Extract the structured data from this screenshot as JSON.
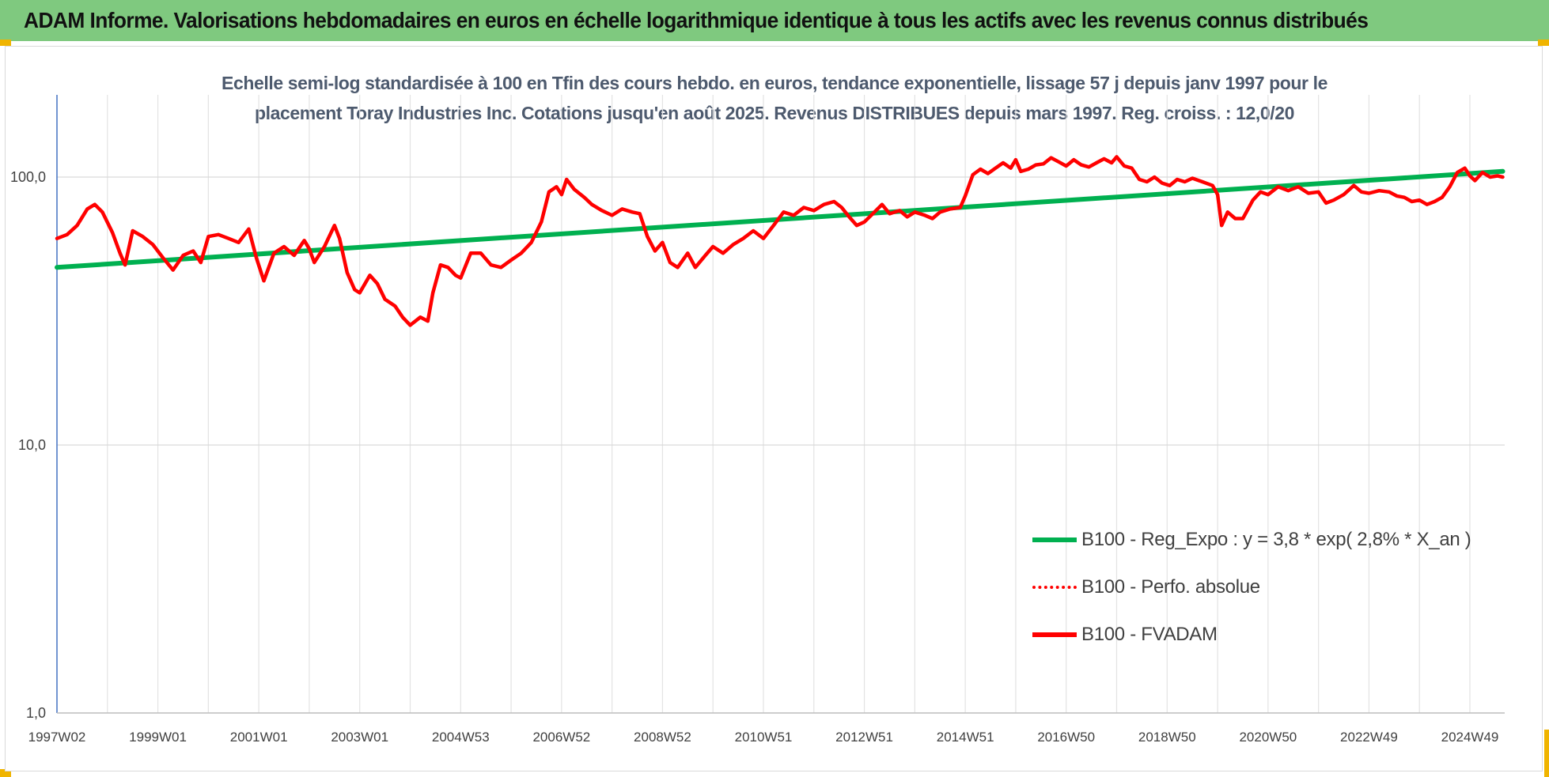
{
  "banner": {
    "title": "ADAM Informe. Valorisations hebdomadaires en euros en échelle logarithmique identique à tous les actifs avec les revenus connus distribués"
  },
  "colors": {
    "banner_bg": "#7fc97f",
    "accent_corner": "#f0b400",
    "series_green": "#00b050",
    "series_red": "#ff0000",
    "axis_text": "#404040",
    "title_text": "#4d5a6e"
  },
  "chart_data": {
    "type": "line",
    "title_line1": "Echelle semi-log standardisée à 100 en Tfin des cours hebdo. en euros, tendance exponentielle, lissage 57 j depuis janv 1997 pour le",
    "title_line2": "placement Toray Industries Inc. Cotations jusqu'en août 2025. Revenus DISTRIBUES depuis mars 1997. Reg. croiss. : 12,0/20",
    "y_scale": "log",
    "ylim": [
      1,
      200
    ],
    "y_ticks": [
      "1,0",
      "10,0",
      "100,0"
    ],
    "y_tick_values": [
      1,
      10,
      100
    ],
    "x_range": [
      1997.0,
      2025.65
    ],
    "x_ticks": [
      "1997W02",
      "1999W01",
      "2001W01",
      "2003W01",
      "2004W53",
      "2006W52",
      "2008W52",
      "2010W51",
      "2012W51",
      "2014W51",
      "2016W50",
      "2018W50",
      "2020W50",
      "2022W49",
      "2024W49"
    ],
    "x_tick_years": [
      1997.0,
      1999.0,
      2001.0,
      2003.0,
      2005.0,
      2007.0,
      2009.0,
      2011.0,
      2013.0,
      2015.0,
      2017.0,
      2019.0,
      2021.0,
      2023.0,
      2025.0
    ],
    "grid": "vertical",
    "legend_position": "bottom-right",
    "series": [
      {
        "name": "B100 - Reg_Expo : y = 3,8 * exp( 2,8% *  X_an )",
        "color": "#00b050",
        "style": "solid",
        "points": [
          [
            1997.0,
            46
          ],
          [
            2025.65,
            105
          ]
        ]
      },
      {
        "name": "B100 - Perfo. absolue",
        "color": "#ff0000",
        "style": "dotted",
        "points": []
      },
      {
        "name": "B100 - FVADAM",
        "color": "#ff0000",
        "style": "solid",
        "points": [
          [
            1997.0,
            59
          ],
          [
            1997.2,
            61
          ],
          [
            1997.4,
            66
          ],
          [
            1997.6,
            76
          ],
          [
            1997.75,
            79
          ],
          [
            1997.9,
            74
          ],
          [
            1998.1,
            62
          ],
          [
            1998.25,
            52
          ],
          [
            1998.35,
            47
          ],
          [
            1998.5,
            63
          ],
          [
            1998.7,
            60
          ],
          [
            1998.9,
            56
          ],
          [
            1999.1,
            50
          ],
          [
            1999.3,
            45
          ],
          [
            1999.5,
            51
          ],
          [
            1999.7,
            53
          ],
          [
            1999.85,
            48
          ],
          [
            2000.0,
            60
          ],
          [
            2000.2,
            61
          ],
          [
            2000.4,
            59
          ],
          [
            2000.6,
            57
          ],
          [
            2000.8,
            64
          ],
          [
            2000.95,
            50
          ],
          [
            2001.1,
            41
          ],
          [
            2001.3,
            52
          ],
          [
            2001.5,
            55
          ],
          [
            2001.7,
            51
          ],
          [
            2001.9,
            58
          ],
          [
            2002.0,
            54
          ],
          [
            2002.1,
            48
          ],
          [
            2002.3,
            55
          ],
          [
            2002.5,
            66
          ],
          [
            2002.6,
            59
          ],
          [
            2002.75,
            44
          ],
          [
            2002.9,
            38
          ],
          [
            2003.0,
            37
          ],
          [
            2003.2,
            43
          ],
          [
            2003.35,
            40
          ],
          [
            2003.5,
            35
          ],
          [
            2003.7,
            33
          ],
          [
            2003.85,
            30
          ],
          [
            2004.0,
            28
          ],
          [
            2004.2,
            30
          ],
          [
            2004.35,
            29
          ],
          [
            2004.45,
            37
          ],
          [
            2004.6,
            47
          ],
          [
            2004.75,
            46
          ],
          [
            2004.9,
            43
          ],
          [
            2005.0,
            42
          ],
          [
            2005.2,
            52
          ],
          [
            2005.4,
            52
          ],
          [
            2005.6,
            47
          ],
          [
            2005.8,
            46
          ],
          [
            2006.0,
            49
          ],
          [
            2006.2,
            52
          ],
          [
            2006.4,
            57
          ],
          [
            2006.6,
            68
          ],
          [
            2006.75,
            88
          ],
          [
            2006.9,
            92
          ],
          [
            2007.0,
            86
          ],
          [
            2007.1,
            98
          ],
          [
            2007.25,
            90
          ],
          [
            2007.45,
            84
          ],
          [
            2007.6,
            79
          ],
          [
            2007.8,
            75
          ],
          [
            2008.0,
            72
          ],
          [
            2008.2,
            76
          ],
          [
            2008.4,
            74
          ],
          [
            2008.55,
            73
          ],
          [
            2008.7,
            60
          ],
          [
            2008.85,
            53
          ],
          [
            2009.0,
            57
          ],
          [
            2009.15,
            48
          ],
          [
            2009.3,
            46
          ],
          [
            2009.5,
            52
          ],
          [
            2009.65,
            46
          ],
          [
            2009.85,
            51
          ],
          [
            2010.0,
            55
          ],
          [
            2010.2,
            52
          ],
          [
            2010.4,
            56
          ],
          [
            2010.6,
            59
          ],
          [
            2010.8,
            63
          ],
          [
            2011.0,
            59
          ],
          [
            2011.2,
            66
          ],
          [
            2011.4,
            74
          ],
          [
            2011.6,
            72
          ],
          [
            2011.8,
            77
          ],
          [
            2012.0,
            75
          ],
          [
            2012.2,
            79
          ],
          [
            2012.4,
            81
          ],
          [
            2012.55,
            77
          ],
          [
            2012.7,
            71
          ],
          [
            2012.85,
            66
          ],
          [
            2013.0,
            68
          ],
          [
            2013.2,
            74
          ],
          [
            2013.35,
            79
          ],
          [
            2013.5,
            73
          ],
          [
            2013.7,
            75
          ],
          [
            2013.85,
            71
          ],
          [
            2014.0,
            74
          ],
          [
            2014.2,
            72
          ],
          [
            2014.35,
            70
          ],
          [
            2014.5,
            74
          ],
          [
            2014.7,
            76
          ],
          [
            2014.9,
            77
          ],
          [
            2015.0,
            85
          ],
          [
            2015.15,
            102
          ],
          [
            2015.3,
            107
          ],
          [
            2015.45,
            103
          ],
          [
            2015.6,
            108
          ],
          [
            2015.75,
            113
          ],
          [
            2015.9,
            108
          ],
          [
            2016.0,
            116
          ],
          [
            2016.1,
            105
          ],
          [
            2016.25,
            107
          ],
          [
            2016.4,
            111
          ],
          [
            2016.55,
            112
          ],
          [
            2016.7,
            118
          ],
          [
            2016.85,
            114
          ],
          [
            2017.0,
            110
          ],
          [
            2017.15,
            116
          ],
          [
            2017.3,
            111
          ],
          [
            2017.45,
            109
          ],
          [
            2017.6,
            113
          ],
          [
            2017.75,
            117
          ],
          [
            2017.9,
            113
          ],
          [
            2018.0,
            119
          ],
          [
            2018.15,
            110
          ],
          [
            2018.3,
            108
          ],
          [
            2018.45,
            98
          ],
          [
            2018.6,
            96
          ],
          [
            2018.75,
            100
          ],
          [
            2018.9,
            95
          ],
          [
            2019.05,
            93
          ],
          [
            2019.2,
            98
          ],
          [
            2019.35,
            96
          ],
          [
            2019.5,
            99
          ],
          [
            2019.7,
            96
          ],
          [
            2019.9,
            93
          ],
          [
            2020.0,
            86
          ],
          [
            2020.08,
            66
          ],
          [
            2020.2,
            74
          ],
          [
            2020.35,
            70
          ],
          [
            2020.5,
            70
          ],
          [
            2020.7,
            82
          ],
          [
            2020.85,
            88
          ],
          [
            2021.0,
            86
          ],
          [
            2021.2,
            92
          ],
          [
            2021.4,
            89
          ],
          [
            2021.6,
            92
          ],
          [
            2021.8,
            87
          ],
          [
            2022.0,
            88
          ],
          [
            2022.15,
            80
          ],
          [
            2022.3,
            82
          ],
          [
            2022.5,
            86
          ],
          [
            2022.7,
            93
          ],
          [
            2022.85,
            88
          ],
          [
            2023.0,
            87
          ],
          [
            2023.2,
            89
          ],
          [
            2023.4,
            88
          ],
          [
            2023.55,
            85
          ],
          [
            2023.7,
            84
          ],
          [
            2023.85,
            81
          ],
          [
            2024.0,
            82
          ],
          [
            2024.15,
            79
          ],
          [
            2024.3,
            81
          ],
          [
            2024.45,
            84
          ],
          [
            2024.6,
            92
          ],
          [
            2024.75,
            104
          ],
          [
            2024.9,
            108
          ],
          [
            2025.0,
            101
          ],
          [
            2025.1,
            97
          ],
          [
            2025.25,
            104
          ],
          [
            2025.4,
            100
          ],
          [
            2025.55,
            101
          ],
          [
            2025.65,
            100
          ]
        ]
      }
    ]
  }
}
